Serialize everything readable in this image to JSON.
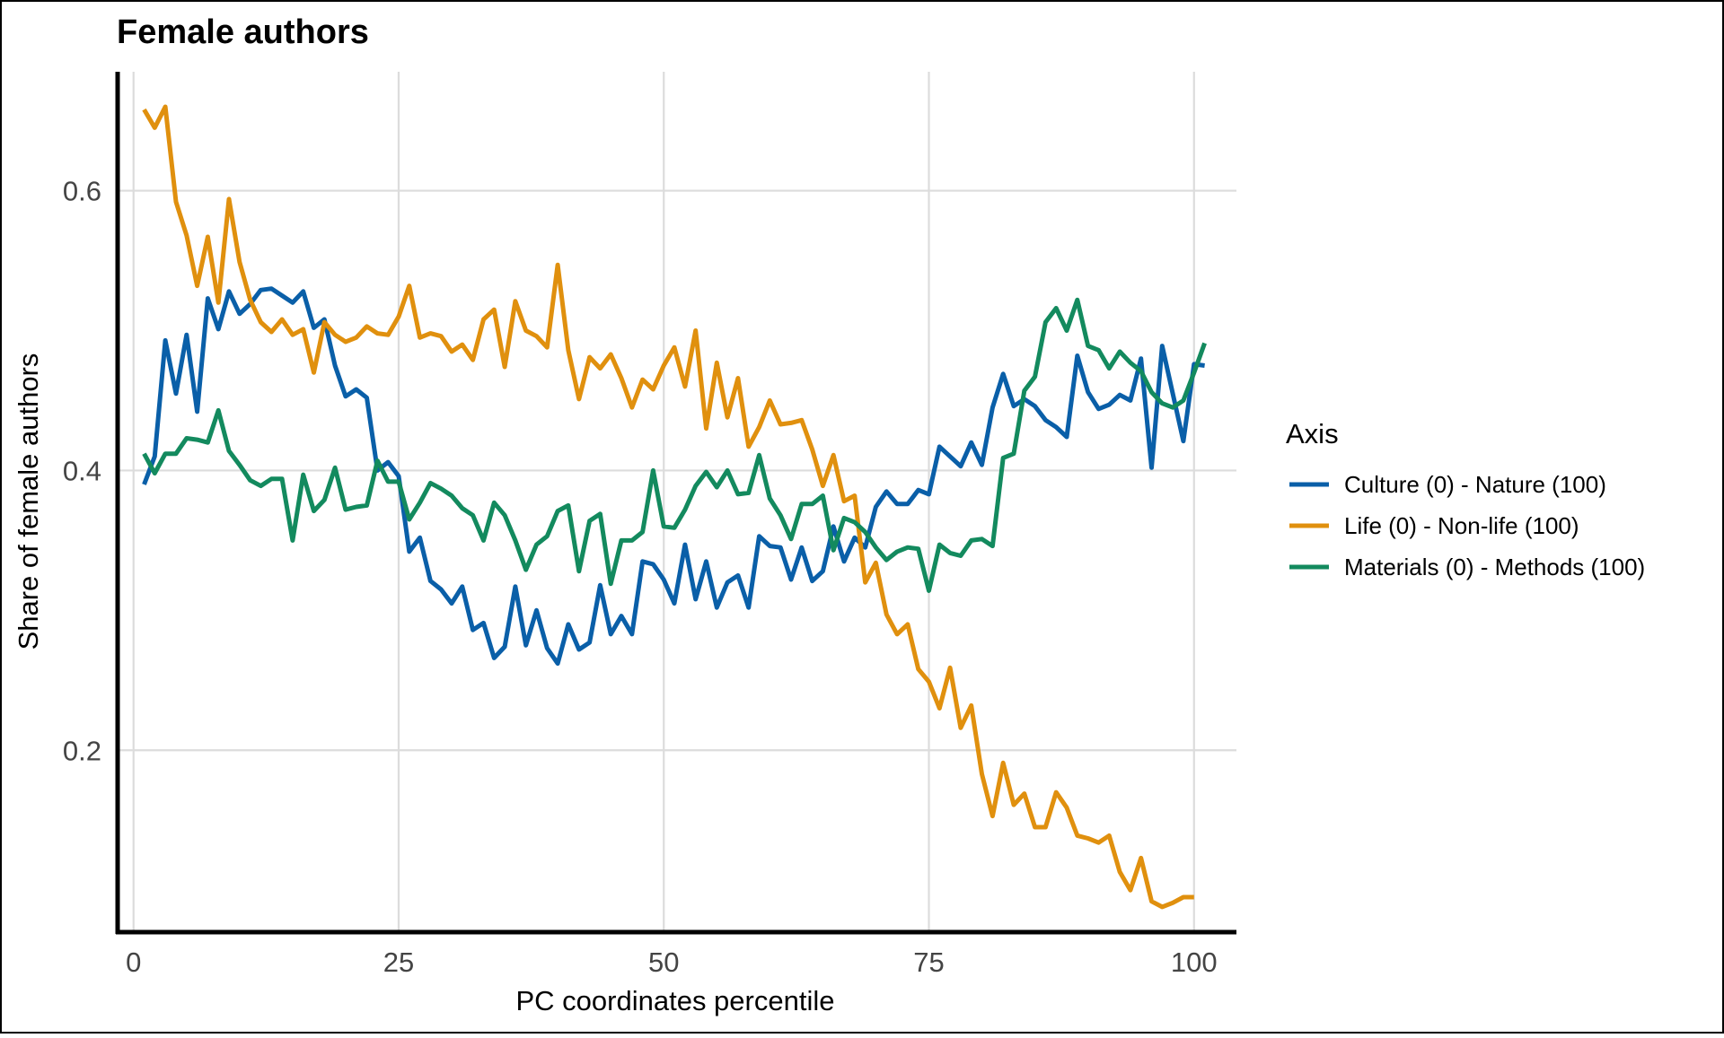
{
  "chart_data": {
    "type": "line",
    "title": "Female authors",
    "xlabel": "PC coordinates percentile",
    "ylabel": "Share of female authors",
    "xlim": [
      -1.5,
      104
    ],
    "ylim": [
      0.07,
      0.685
    ],
    "x_ticks": [
      0,
      25,
      50,
      75,
      100
    ],
    "x_tick_labels": [
      "0",
      "25",
      "50",
      "75",
      "100"
    ],
    "y_ticks": [
      0.2,
      0.4,
      0.6
    ],
    "y_tick_labels": [
      "0.2",
      "0.4",
      "0.6"
    ],
    "grid": true,
    "legend_title": "Axis",
    "legend_position": "right",
    "series": [
      {
        "name": "Culture (0) - Nature (100)",
        "color": "#0a5fa8",
        "values": [
          0.39,
          0.41,
          0.493,
          0.455,
          0.497,
          0.442,
          0.523,
          0.501,
          0.528,
          0.512,
          0.519,
          0.529,
          0.53,
          0.525,
          0.52,
          0.528,
          0.502,
          0.508,
          0.475,
          0.453,
          0.458,
          0.452,
          0.4,
          0.406,
          0.396,
          0.342,
          0.352,
          0.321,
          0.315,
          0.305,
          0.317,
          0.286,
          0.291,
          0.266,
          0.274,
          0.317,
          0.275,
          0.3,
          0.273,
          0.262,
          0.29,
          0.272,
          0.277,
          0.318,
          0.283,
          0.296,
          0.283,
          0.335,
          0.333,
          0.322,
          0.305,
          0.347,
          0.308,
          0.335,
          0.302,
          0.32,
          0.325,
          0.302,
          0.353,
          0.346,
          0.345,
          0.322,
          0.345,
          0.321,
          0.328,
          0.36,
          0.335,
          0.352,
          0.345,
          0.374,
          0.385,
          0.376,
          0.376,
          0.386,
          0.383,
          0.417,
          0.41,
          0.403,
          0.42,
          0.404,
          0.445,
          0.469,
          0.446,
          0.451,
          0.446,
          0.436,
          0.431,
          0.424,
          0.482,
          0.456,
          0.444,
          0.447,
          0.454,
          0.45,
          0.48,
          0.402,
          0.489,
          0.455,
          0.421,
          0.476,
          0.475
        ]
      },
      {
        "name": "Life (0) - Non-life (100)",
        "color": "#e0900e",
        "values": [
          0.658,
          0.645,
          0.66,
          0.592,
          0.568,
          0.532,
          0.567,
          0.52,
          0.594,
          0.549,
          0.522,
          0.506,
          0.499,
          0.508,
          0.497,
          0.501,
          0.47,
          0.506,
          0.497,
          0.492,
          0.495,
          0.503,
          0.498,
          0.497,
          0.51,
          0.532,
          0.495,
          0.498,
          0.496,
          0.485,
          0.49,
          0.479,
          0.508,
          0.515,
          0.474,
          0.521,
          0.5,
          0.496,
          0.488,
          0.547,
          0.486,
          0.451,
          0.481,
          0.473,
          0.483,
          0.466,
          0.445,
          0.465,
          0.458,
          0.475,
          0.488,
          0.46,
          0.5,
          0.43,
          0.477,
          0.438,
          0.466,
          0.417,
          0.431,
          0.45,
          0.433,
          0.434,
          0.436,
          0.415,
          0.389,
          0.411,
          0.378,
          0.382,
          0.32,
          0.334,
          0.297,
          0.283,
          0.29,
          0.258,
          0.249,
          0.23,
          0.259,
          0.216,
          0.232,
          0.183,
          0.153,
          0.191,
          0.161,
          0.169,
          0.145,
          0.145,
          0.17,
          0.159,
          0.139,
          0.137,
          0.134,
          0.139,
          0.113,
          0.1,
          0.123,
          0.092,
          0.088,
          0.091,
          0.095,
          0.095
        ]
      },
      {
        "name": "Materials (0) - Methods (100)",
        "color": "#138a5e",
        "values": [
          0.412,
          0.398,
          0.412,
          0.412,
          0.423,
          0.422,
          0.42,
          0.443,
          0.414,
          0.404,
          0.393,
          0.389,
          0.394,
          0.394,
          0.35,
          0.397,
          0.371,
          0.379,
          0.402,
          0.372,
          0.374,
          0.375,
          0.407,
          0.392,
          0.392,
          0.365,
          0.377,
          0.391,
          0.387,
          0.382,
          0.373,
          0.368,
          0.35,
          0.377,
          0.368,
          0.35,
          0.329,
          0.347,
          0.353,
          0.371,
          0.375,
          0.328,
          0.364,
          0.369,
          0.319,
          0.35,
          0.35,
          0.356,
          0.4,
          0.36,
          0.359,
          0.372,
          0.389,
          0.399,
          0.388,
          0.4,
          0.383,
          0.384,
          0.411,
          0.38,
          0.368,
          0.351,
          0.376,
          0.376,
          0.382,
          0.343,
          0.366,
          0.363,
          0.356,
          0.345,
          0.336,
          0.342,
          0.345,
          0.344,
          0.314,
          0.347,
          0.341,
          0.339,
          0.35,
          0.351,
          0.346,
          0.409,
          0.412,
          0.457,
          0.467,
          0.506,
          0.516,
          0.5,
          0.522,
          0.489,
          0.486,
          0.473,
          0.485,
          0.477,
          0.471,
          0.456,
          0.448,
          0.445,
          0.45,
          0.47,
          0.491
        ]
      }
    ]
  }
}
